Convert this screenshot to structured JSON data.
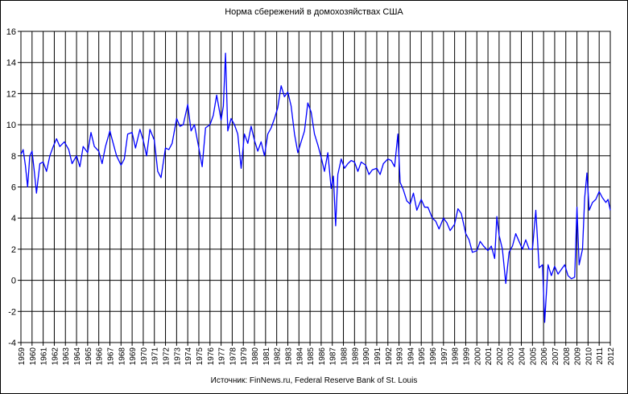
{
  "chart_data": {
    "type": "line",
    "title": "Норма сбережений в домохозяйствах США",
    "source": "Источник: FinNews.ru, Federal Reserve Bank of St. Louis",
    "xlabel": "",
    "ylabel": "",
    "xlim": [
      1959,
      2012
    ],
    "ylim": [
      -4,
      16
    ],
    "y_ticks": [
      "16",
      "14",
      "12",
      "10",
      "8",
      "6",
      "4",
      "2",
      "0",
      "-2",
      "-4"
    ],
    "x_ticks": [
      "1959",
      "1960",
      "1961",
      "1962",
      "1963",
      "1964",
      "1965",
      "1966",
      "1967",
      "1968",
      "1969",
      "1970",
      "1971",
      "1972",
      "1973",
      "1974",
      "1975",
      "1976",
      "1977",
      "1978",
      "1979",
      "1980",
      "1981",
      "1982",
      "1983",
      "1984",
      "1985",
      "1986",
      "1987",
      "1988",
      "1989",
      "1990",
      "1991",
      "1992",
      "1993",
      "1994",
      "1995",
      "1996",
      "1997",
      "1998",
      "1999",
      "2000",
      "2001",
      "2002",
      "2003",
      "2004",
      "2005",
      "2006",
      "2007",
      "2008",
      "2009",
      "2010",
      "2011",
      "2012"
    ],
    "grid": true,
    "legend": "none",
    "series": [
      {
        "color": "#0000ff",
        "points": [
          [
            1959.0,
            8.1
          ],
          [
            1959.2,
            8.4
          ],
          [
            1959.4,
            7.4
          ],
          [
            1959.6,
            6.0
          ],
          [
            1959.8,
            8.0
          ],
          [
            1960.0,
            8.3
          ],
          [
            1960.2,
            7.0
          ],
          [
            1960.4,
            5.6
          ],
          [
            1960.7,
            7.5
          ],
          [
            1961.0,
            7.6
          ],
          [
            1961.3,
            7.0
          ],
          [
            1961.6,
            8.0
          ],
          [
            1961.9,
            8.6
          ],
          [
            1962.2,
            9.1
          ],
          [
            1962.5,
            8.6
          ],
          [
            1962.9,
            8.9
          ],
          [
            1963.3,
            8.4
          ],
          [
            1963.6,
            7.5
          ],
          [
            1964.0,
            8.0
          ],
          [
            1964.3,
            7.3
          ],
          [
            1964.6,
            8.6
          ],
          [
            1965.0,
            8.2
          ],
          [
            1965.3,
            9.5
          ],
          [
            1965.6,
            8.6
          ],
          [
            1966.0,
            8.3
          ],
          [
            1966.3,
            7.5
          ],
          [
            1966.6,
            8.6
          ],
          [
            1967.0,
            9.6
          ],
          [
            1967.3,
            8.8
          ],
          [
            1967.6,
            8.0
          ],
          [
            1968.0,
            7.4
          ],
          [
            1968.3,
            7.8
          ],
          [
            1968.6,
            9.4
          ],
          [
            1969.0,
            9.5
          ],
          [
            1969.3,
            8.5
          ],
          [
            1969.7,
            9.7
          ],
          [
            1970.0,
            9.0
          ],
          [
            1970.3,
            8.0
          ],
          [
            1970.6,
            9.7
          ],
          [
            1971.0,
            9.0
          ],
          [
            1971.3,
            7.0
          ],
          [
            1971.6,
            6.6
          ],
          [
            1972.0,
            8.5
          ],
          [
            1972.3,
            8.4
          ],
          [
            1972.6,
            8.8
          ],
          [
            1973.0,
            10.4
          ],
          [
            1973.3,
            9.9
          ],
          [
            1973.6,
            10.0
          ],
          [
            1974.0,
            11.3
          ],
          [
            1974.3,
            9.6
          ],
          [
            1974.6,
            10.0
          ],
          [
            1975.0,
            8.5
          ],
          [
            1975.3,
            7.3
          ],
          [
            1975.6,
            9.8
          ],
          [
            1976.0,
            10.0
          ],
          [
            1976.3,
            10.6
          ],
          [
            1976.6,
            11.9
          ],
          [
            1977.0,
            10.3
          ],
          [
            1977.2,
            11.2
          ],
          [
            1977.4,
            14.6
          ],
          [
            1977.6,
            9.6
          ],
          [
            1977.9,
            10.4
          ],
          [
            1978.2,
            10.0
          ],
          [
            1978.5,
            9.4
          ],
          [
            1978.8,
            7.2
          ],
          [
            1979.1,
            9.4
          ],
          [
            1979.4,
            8.8
          ],
          [
            1979.7,
            9.9
          ],
          [
            1980.0,
            9.0
          ],
          [
            1980.3,
            8.3
          ],
          [
            1980.6,
            8.9
          ],
          [
            1980.9,
            8.0
          ],
          [
            1981.2,
            9.4
          ],
          [
            1981.5,
            9.8
          ],
          [
            1981.8,
            10.4
          ],
          [
            1982.1,
            11.1
          ],
          [
            1982.4,
            12.5
          ],
          [
            1982.7,
            11.8
          ],
          [
            1983.0,
            12.1
          ],
          [
            1983.3,
            11.2
          ],
          [
            1983.6,
            9.4
          ],
          [
            1983.9,
            8.2
          ],
          [
            1984.2,
            8.9
          ],
          [
            1984.5,
            9.6
          ],
          [
            1984.8,
            11.4
          ],
          [
            1985.1,
            10.8
          ],
          [
            1985.4,
            9.4
          ],
          [
            1985.7,
            8.7
          ],
          [
            1986.0,
            7.9
          ],
          [
            1986.3,
            7.0
          ],
          [
            1986.6,
            8.2
          ],
          [
            1986.9,
            5.9
          ],
          [
            1987.1,
            6.7
          ],
          [
            1987.3,
            3.5
          ],
          [
            1987.5,
            6.8
          ],
          [
            1987.8,
            7.8
          ],
          [
            1988.1,
            7.2
          ],
          [
            1988.4,
            7.5
          ],
          [
            1988.7,
            7.7
          ],
          [
            1989.0,
            7.6
          ],
          [
            1989.3,
            7.0
          ],
          [
            1989.6,
            7.6
          ],
          [
            1990.0,
            7.4
          ],
          [
            1990.3,
            6.8
          ],
          [
            1990.6,
            7.1
          ],
          [
            1991.0,
            7.2
          ],
          [
            1991.3,
            6.8
          ],
          [
            1991.6,
            7.5
          ],
          [
            1992.0,
            7.8
          ],
          [
            1992.3,
            7.7
          ],
          [
            1992.6,
            7.3
          ],
          [
            1992.9,
            9.4
          ],
          [
            1993.1,
            6.3
          ],
          [
            1993.4,
            5.8
          ],
          [
            1993.7,
            5.1
          ],
          [
            1994.0,
            4.9
          ],
          [
            1994.3,
            5.6
          ],
          [
            1994.6,
            4.5
          ],
          [
            1995.0,
            5.2
          ],
          [
            1995.3,
            4.7
          ],
          [
            1995.6,
            4.7
          ],
          [
            1996.0,
            4.0
          ],
          [
            1996.3,
            3.8
          ],
          [
            1996.6,
            3.3
          ],
          [
            1997.0,
            4.0
          ],
          [
            1997.3,
            3.7
          ],
          [
            1997.6,
            3.2
          ],
          [
            1998.0,
            3.6
          ],
          [
            1998.3,
            4.6
          ],
          [
            1998.6,
            4.3
          ],
          [
            1999.0,
            3.0
          ],
          [
            1999.3,
            2.6
          ],
          [
            1999.6,
            1.8
          ],
          [
            2000.0,
            1.9
          ],
          [
            2000.3,
            2.5
          ],
          [
            2000.6,
            2.2
          ],
          [
            2001.0,
            1.9
          ],
          [
            2001.3,
            2.2
          ],
          [
            2001.6,
            1.4
          ],
          [
            2001.8,
            4.1
          ],
          [
            2002.0,
            2.9
          ],
          [
            2002.3,
            2.0
          ],
          [
            2002.6,
            -0.2
          ],
          [
            2002.9,
            1.8
          ],
          [
            2003.2,
            2.2
          ],
          [
            2003.5,
            3.0
          ],
          [
            2003.8,
            2.5
          ],
          [
            2004.1,
            2.0
          ],
          [
            2004.4,
            2.6
          ],
          [
            2004.7,
            2.0
          ],
          [
            2005.0,
            2.0
          ],
          [
            2005.3,
            4.5
          ],
          [
            2005.6,
            0.8
          ],
          [
            2005.9,
            1.0
          ],
          [
            2006.1,
            -2.7
          ],
          [
            2006.4,
            1.0
          ],
          [
            2006.7,
            0.3
          ],
          [
            2007.0,
            0.9
          ],
          [
            2007.3,
            0.4
          ],
          [
            2007.6,
            0.7
          ],
          [
            2007.9,
            1.0
          ],
          [
            2008.2,
            0.3
          ],
          [
            2008.5,
            0.1
          ],
          [
            2008.8,
            0.2
          ],
          [
            2009.0,
            4.7
          ],
          [
            2009.2,
            1.0
          ],
          [
            2009.5,
            2.0
          ],
          [
            2009.7,
            5.3
          ],
          [
            2009.9,
            6.9
          ],
          [
            2010.1,
            4.5
          ],
          [
            2010.4,
            5.0
          ],
          [
            2010.7,
            5.2
          ],
          [
            2011.0,
            5.7
          ],
          [
            2011.3,
            5.3
          ],
          [
            2011.6,
            5.0
          ],
          [
            2011.8,
            5.2
          ],
          [
            2012.0,
            4.5
          ]
        ]
      }
    ]
  }
}
